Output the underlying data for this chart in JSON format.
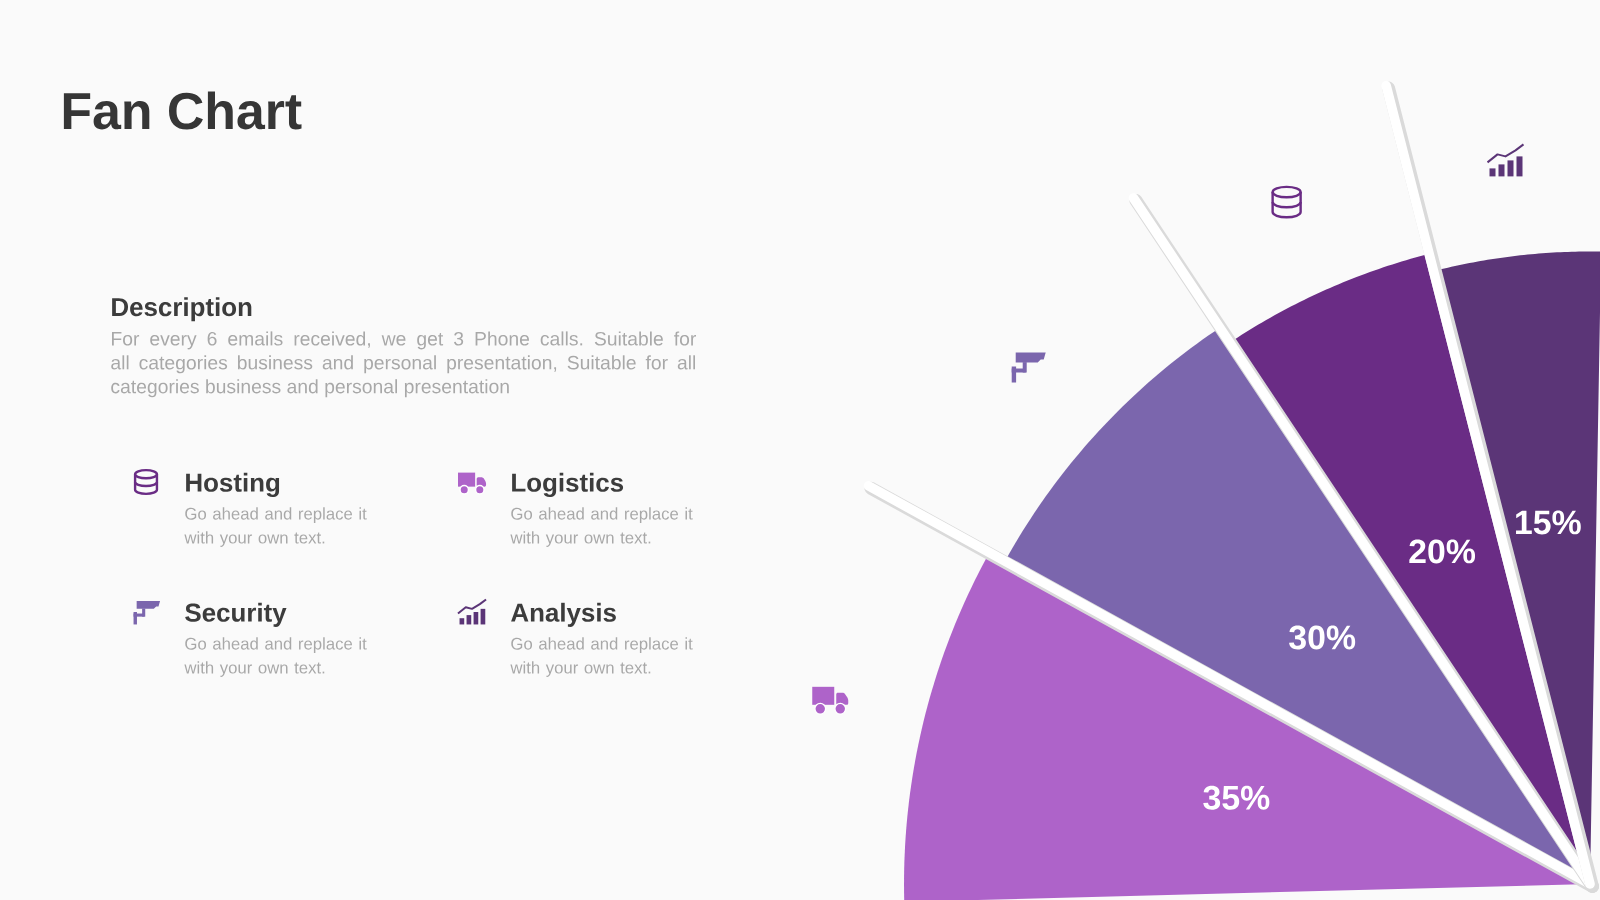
{
  "chart_data": {
    "type": "pie",
    "title": "Fan Chart",
    "categories": [
      "Logistics",
      "Security",
      "Hosting",
      "Analysis"
    ],
    "values": [
      35,
      30,
      20,
      15
    ],
    "colors": [
      "#ae63c9",
      "#7b66ad",
      "#6a2c85",
      "#5b3577"
    ],
    "value_labels": [
      "35%",
      "30%",
      "20%",
      "15%"
    ],
    "legend": "left",
    "annotations": [
      "Description",
      "For every 6 emails received, we get 3 Phone calls. Suitable for all categories business and personal presentation, Suitable for all categories business and personal presentation",
      "Go ahead and replace it with your own text.",
      "Go ahead and replace it with your own text.",
      "Go ahead and replace it with your own text.",
      "Go ahead and replace it with your own text."
    ]
  }
}
